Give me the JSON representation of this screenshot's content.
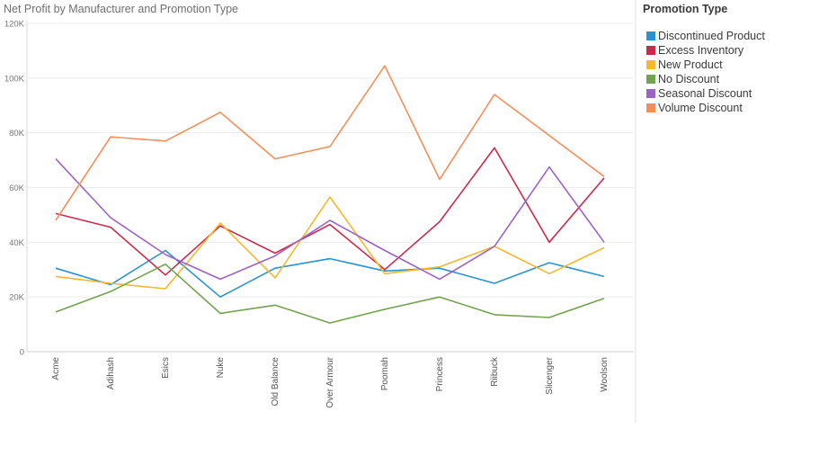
{
  "chart_data": {
    "type": "line",
    "title": "Net Profit by Manufacturer and Promotion Type",
    "xlabel": "",
    "ylabel": "",
    "categories": [
      "Acme",
      "Adihash",
      "Esics",
      "Nuke",
      "Old Balance",
      "Over Armour",
      "Poomah",
      "Princess",
      "Riibuck",
      "Slicenger",
      "Woolson"
    ],
    "y_ticks": [
      "0",
      "20K",
      "40K",
      "60K",
      "80K",
      "100K",
      "120K"
    ],
    "ylim": [
      0,
      120000
    ],
    "grid": true,
    "legend": {
      "title": "Promotion Type",
      "position": "right"
    },
    "series": [
      {
        "name": "Discontinued Product",
        "color": "#2b93d1",
        "values": [
          30500,
          24500,
          37000,
          20000,
          30500,
          34000,
          29500,
          30500,
          25000,
          32500,
          27500
        ]
      },
      {
        "name": "Excess Inventory",
        "color": "#cc2a4d",
        "values": [
          50500,
          45500,
          28000,
          46000,
          36000,
          46500,
          30000,
          47500,
          74500,
          40000,
          63500
        ]
      },
      {
        "name": "New Product",
        "color": "#f5b82e",
        "values": [
          27500,
          25000,
          23000,
          47000,
          27000,
          56500,
          28500,
          31000,
          38500,
          28500,
          38000
        ]
      },
      {
        "name": "No Discount",
        "color": "#72a350",
        "values": [
          14500,
          22000,
          32000,
          14000,
          17000,
          10500,
          15500,
          20000,
          13500,
          12500,
          19500
        ]
      },
      {
        "name": "Seasonal Discount",
        "color": "#9b63c4",
        "values": [
          70500,
          49000,
          35500,
          26500,
          35000,
          48000,
          37000,
          26500,
          38500,
          67500,
          40000
        ]
      },
      {
        "name": "Volume Discount",
        "color": "#f58f5a",
        "values": [
          48000,
          78500,
          77000,
          87500,
          70500,
          75000,
          104500,
          63000,
          94000,
          79000,
          64000
        ]
      }
    ]
  }
}
